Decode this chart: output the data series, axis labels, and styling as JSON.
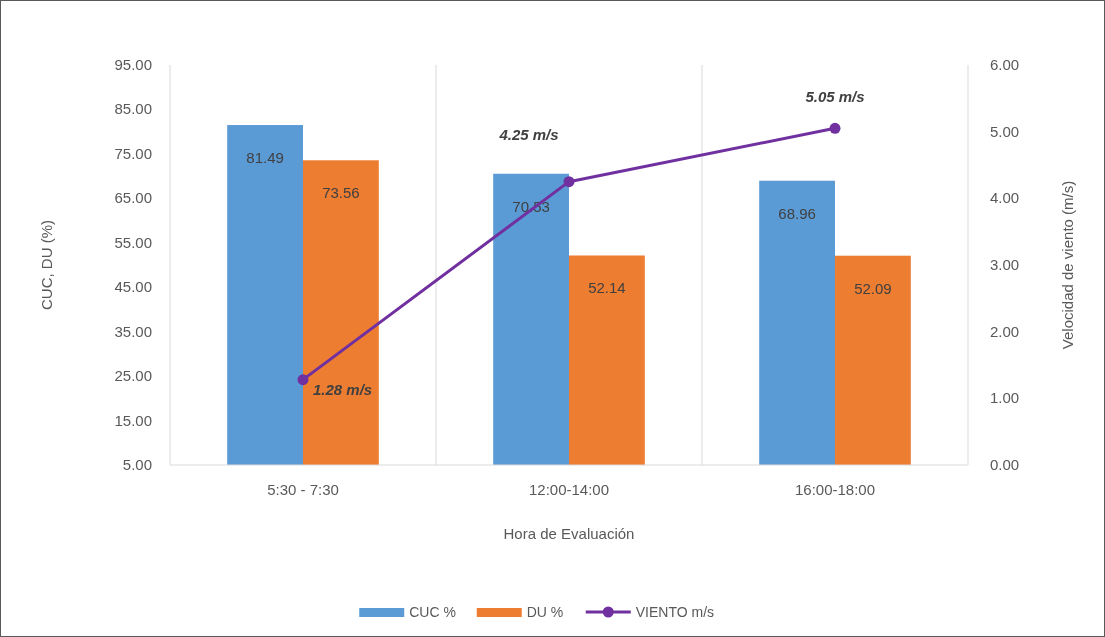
{
  "chart_data": {
    "type": "bar",
    "xlabel": "Hora de Evaluación",
    "ylabel": "CUC, DU (%)",
    "y2label": "Velocidad de viento (m/s)",
    "categories": [
      "5:30 - 7:30",
      "12:00-14:00",
      "16:00-18:00"
    ],
    "series": [
      {
        "name": "CUC %",
        "color": "#5b9bd5",
        "values": [
          81.49,
          70.53,
          68.96
        ],
        "value_labels": [
          "81.49",
          "70.53",
          "68.96"
        ]
      },
      {
        "name": "DU %",
        "color": "#ed7d31",
        "values": [
          73.56,
          52.14,
          52.09
        ],
        "value_labels": [
          "73.56",
          "52.14",
          "52.09"
        ]
      },
      {
        "name": "VIENTO m/s",
        "type": "line",
        "axis": "y2",
        "color": "#7030a0",
        "marker": "circle",
        "values": [
          1.28,
          4.25,
          5.05
        ],
        "value_labels": [
          "1.28 m/s",
          "4.25 m/s",
          "5.05 m/s"
        ]
      }
    ],
    "ylim": [
      5,
      95
    ],
    "yticks": [
      {
        "value": 5,
        "label": "5.00"
      },
      {
        "value": 15,
        "label": "15.00"
      },
      {
        "value": 25,
        "label": "25.00"
      },
      {
        "value": 35,
        "label": "35.00"
      },
      {
        "value": 45,
        "label": "45.00"
      },
      {
        "value": 55,
        "label": "55.00"
      },
      {
        "value": 65,
        "label": "65.00"
      },
      {
        "value": 75,
        "label": "75.00"
      },
      {
        "value": 85,
        "label": "85.00"
      },
      {
        "value": 95,
        "label": "95.00"
      }
    ],
    "y2lim": [
      0,
      6
    ],
    "y2ticks": [
      {
        "value": 0,
        "label": "0.00"
      },
      {
        "value": 1,
        "label": "1.00"
      },
      {
        "value": 2,
        "label": "2.00"
      },
      {
        "value": 3,
        "label": "3.00"
      },
      {
        "value": 4,
        "label": "4.00"
      },
      {
        "value": 5,
        "label": "5.00"
      },
      {
        "value": 6,
        "label": "6.00"
      }
    ],
    "grid": "x",
    "legend": "bottom"
  }
}
